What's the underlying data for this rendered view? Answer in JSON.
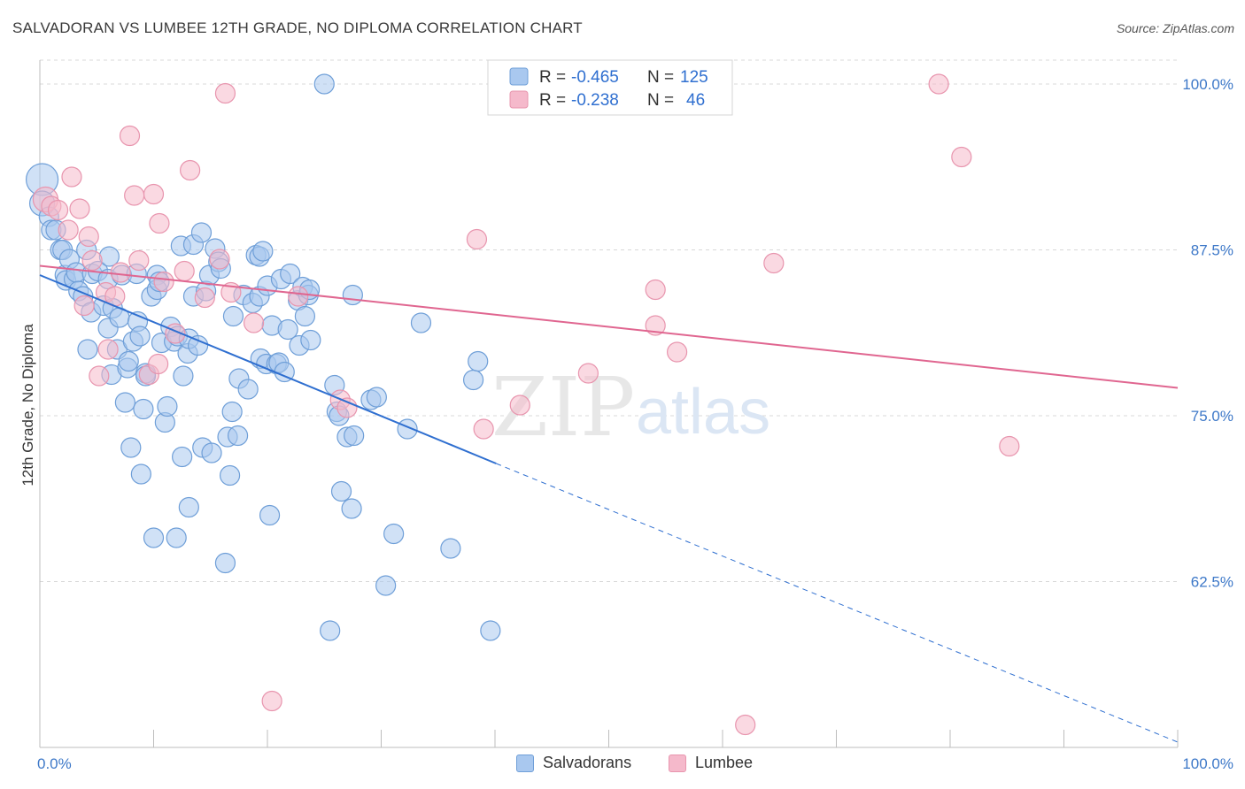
{
  "header": {
    "title": "SALVADORAN VS LUMBEE 12TH GRADE, NO DIPLOMA CORRELATION CHART",
    "source": "Source: ZipAtlas.com"
  },
  "watermark": {
    "zip": "ZIP",
    "atlas": "atlas"
  },
  "colors": {
    "blue_fill": "#a9c8ef",
    "blue_stroke": "#6f9fd8",
    "blue_line": "#2f6fd0",
    "pink_fill": "#f5b9cb",
    "pink_stroke": "#e895ae",
    "pink_line": "#e06690",
    "tick_label": "#3d78c8",
    "grid": "#d8d8d8"
  },
  "legend": {
    "rows": [
      {
        "r_label": "R = ",
        "r_value": "-0.465",
        "n_label": "N = ",
        "n_value": "125"
      },
      {
        "r_label": "R = ",
        "r_value": "-0.238",
        "n_label": "N = ",
        "n_value": "46"
      }
    ]
  },
  "chart_data": {
    "type": "scatter",
    "title": "SALVADORAN VS LUMBEE 12TH GRADE, NO DIPLOMA CORRELATION CHART",
    "xlabel": "",
    "ylabel": "12th Grade, No Diploma",
    "xlim": [
      0,
      100
    ],
    "ylim": [
      50,
      101.8
    ],
    "x_tick_labels": [
      "0.0%",
      "100.0%"
    ],
    "y_ticks": [
      62.5,
      75.0,
      87.5,
      100.0
    ],
    "y_tick_labels": [
      "62.5%",
      "75.0%",
      "87.5%",
      "100.0%"
    ],
    "grid": true,
    "legend_position": "top-center",
    "series": [
      {
        "name": "Salvadorans",
        "color": "#6f9fd8",
        "trend": {
          "x": [
            0,
            40.1,
            100
          ],
          "y": [
            85.6,
            71.4,
            50.4
          ],
          "dashed_from_x": 40.1
        },
        "points": [
          [
            0.2,
            92.8,
            18
          ],
          [
            0.2,
            91.0,
            14
          ],
          [
            0.8,
            90.0,
            11
          ],
          [
            1.0,
            89.0,
            11
          ],
          [
            1.4,
            89.0,
            11
          ],
          [
            1.8,
            87.5,
            11
          ],
          [
            2.0,
            87.5,
            11
          ],
          [
            2.2,
            85.6,
            11
          ],
          [
            2.3,
            85.2,
            11
          ],
          [
            2.6,
            86.8,
            11
          ],
          [
            3.0,
            85.3,
            11
          ],
          [
            3.2,
            85.8,
            11
          ],
          [
            3.4,
            84.4,
            11
          ],
          [
            3.8,
            84.0,
            11
          ],
          [
            4.1,
            87.5,
            11
          ],
          [
            4.2,
            80.0,
            11
          ],
          [
            4.5,
            82.8,
            11
          ],
          [
            4.6,
            85.7,
            11
          ],
          [
            5.1,
            85.9,
            11
          ],
          [
            5.6,
            83.3,
            11
          ],
          [
            6.0,
            85.3,
            11
          ],
          [
            6.0,
            81.6,
            11
          ],
          [
            6.1,
            87.0,
            11
          ],
          [
            6.3,
            78.1,
            11
          ],
          [
            6.4,
            83.1,
            11
          ],
          [
            6.8,
            80.0,
            11
          ],
          [
            7.2,
            85.6,
            11
          ],
          [
            7.0,
            82.4,
            11
          ],
          [
            7.5,
            76.0,
            11
          ],
          [
            7.7,
            78.6,
            11
          ],
          [
            7.8,
            79.1,
            11
          ],
          [
            8.0,
            72.6,
            11
          ],
          [
            8.2,
            80.6,
            11
          ],
          [
            8.5,
            85.7,
            11
          ],
          [
            8.6,
            82.1,
            11
          ],
          [
            8.8,
            81.0,
            11
          ],
          [
            8.9,
            70.6,
            11
          ],
          [
            9.1,
            75.5,
            11
          ],
          [
            9.3,
            78.2,
            11
          ],
          [
            9.3,
            78.0,
            11
          ],
          [
            9.8,
            84.0,
            11
          ],
          [
            10.0,
            65.8,
            11
          ],
          [
            10.3,
            85.6,
            11
          ],
          [
            10.3,
            84.5,
            11
          ],
          [
            10.5,
            85.1,
            11
          ],
          [
            10.7,
            80.5,
            11
          ],
          [
            11.0,
            74.5,
            11
          ],
          [
            11.2,
            75.7,
            11
          ],
          [
            11.5,
            81.7,
            11
          ],
          [
            11.8,
            80.6,
            11
          ],
          [
            12.0,
            65.8,
            11
          ],
          [
            12.1,
            81.0,
            11
          ],
          [
            12.4,
            87.8,
            11
          ],
          [
            12.5,
            71.9,
            11
          ],
          [
            12.6,
            78.0,
            11
          ],
          [
            13.0,
            79.7,
            11
          ],
          [
            13.1,
            80.8,
            11
          ],
          [
            13.1,
            68.1,
            11
          ],
          [
            13.5,
            84.0,
            11
          ],
          [
            13.5,
            87.9,
            11
          ],
          [
            13.9,
            80.3,
            11
          ],
          [
            14.2,
            88.8,
            11
          ],
          [
            14.3,
            72.6,
            11
          ],
          [
            14.6,
            84.4,
            11
          ],
          [
            14.9,
            85.6,
            11
          ],
          [
            15.1,
            72.2,
            11
          ],
          [
            15.4,
            87.6,
            11
          ],
          [
            15.7,
            86.6,
            11
          ],
          [
            15.9,
            86.1,
            11
          ],
          [
            16.3,
            63.9,
            11
          ],
          [
            16.5,
            73.4,
            11
          ],
          [
            16.7,
            70.5,
            11
          ],
          [
            16.9,
            75.3,
            11
          ],
          [
            17.0,
            82.5,
            11
          ],
          [
            17.4,
            73.5,
            11
          ],
          [
            17.5,
            77.8,
            11
          ],
          [
            17.9,
            84.1,
            11
          ],
          [
            18.3,
            77.0,
            11
          ],
          [
            18.7,
            83.5,
            11
          ],
          [
            19.0,
            87.1,
            11
          ],
          [
            19.3,
            87.0,
            11
          ],
          [
            19.3,
            84.0,
            11
          ],
          [
            19.4,
            79.3,
            11
          ],
          [
            19.6,
            87.4,
            11
          ],
          [
            19.9,
            78.9,
            11
          ],
          [
            20.0,
            84.8,
            11
          ],
          [
            20.2,
            67.5,
            11
          ],
          [
            20.4,
            81.8,
            11
          ],
          [
            20.8,
            78.9,
            11
          ],
          [
            21.0,
            79.0,
            11
          ],
          [
            21.2,
            85.3,
            11
          ],
          [
            21.5,
            78.3,
            11
          ],
          [
            21.8,
            81.5,
            11
          ],
          [
            22.0,
            85.7,
            11
          ],
          [
            22.7,
            83.7,
            11
          ],
          [
            22.8,
            80.3,
            11
          ],
          [
            23.1,
            84.7,
            11
          ],
          [
            23.3,
            82.5,
            11
          ],
          [
            23.6,
            84.1,
            11
          ],
          [
            23.7,
            84.5,
            11
          ],
          [
            23.8,
            80.7,
            11
          ],
          [
            25.0,
            100.0,
            11
          ],
          [
            25.5,
            58.8,
            11
          ],
          [
            25.9,
            77.3,
            11
          ],
          [
            26.1,
            75.3,
            11
          ],
          [
            26.3,
            75.0,
            11
          ],
          [
            26.5,
            69.3,
            11
          ],
          [
            27.0,
            73.4,
            11
          ],
          [
            27.4,
            68.0,
            11
          ],
          [
            27.6,
            73.5,
            11
          ],
          [
            27.5,
            84.1,
            11
          ],
          [
            29.1,
            76.2,
            11
          ],
          [
            29.6,
            76.4,
            11
          ],
          [
            30.4,
            62.2,
            11
          ],
          [
            31.1,
            66.1,
            11
          ],
          [
            32.3,
            74.0,
            11
          ],
          [
            33.5,
            82.0,
            11
          ],
          [
            36.1,
            65.0,
            11
          ],
          [
            38.1,
            77.7,
            11
          ],
          [
            38.5,
            79.1,
            11
          ],
          [
            39.6,
            58.8,
            11
          ]
        ]
      },
      {
        "name": "Lumbee",
        "color": "#e895ae",
        "trend": {
          "x": [
            0,
            100
          ],
          "y": [
            86.3,
            77.1
          ]
        },
        "points": [
          [
            0.5,
            91.3,
            14
          ],
          [
            1.0,
            90.8,
            11
          ],
          [
            1.6,
            90.5,
            11
          ],
          [
            2.5,
            89.0,
            11
          ],
          [
            2.8,
            93.0,
            11
          ],
          [
            3.5,
            90.6,
            11
          ],
          [
            3.9,
            83.3,
            11
          ],
          [
            4.3,
            88.5,
            11
          ],
          [
            4.6,
            86.7,
            11
          ],
          [
            5.2,
            78.0,
            11
          ],
          [
            5.8,
            84.3,
            11
          ],
          [
            6.0,
            80.0,
            11
          ],
          [
            6.6,
            84.0,
            11
          ],
          [
            7.1,
            85.8,
            11
          ],
          [
            7.9,
            96.1,
            11
          ],
          [
            8.3,
            91.6,
            11
          ],
          [
            8.7,
            86.7,
            11
          ],
          [
            9.6,
            78.1,
            11
          ],
          [
            10.0,
            91.7,
            11
          ],
          [
            10.4,
            78.9,
            11
          ],
          [
            10.5,
            89.5,
            11
          ],
          [
            10.9,
            85.1,
            11
          ],
          [
            11.9,
            81.2,
            11
          ],
          [
            12.7,
            85.9,
            11
          ],
          [
            13.2,
            93.5,
            11
          ],
          [
            14.5,
            83.9,
            11
          ],
          [
            15.8,
            86.8,
            11
          ],
          [
            16.3,
            99.3,
            11
          ],
          [
            16.8,
            84.3,
            11
          ],
          [
            18.8,
            82.0,
            11
          ],
          [
            20.4,
            53.5,
            11
          ],
          [
            22.7,
            84.0,
            11
          ],
          [
            26.4,
            76.2,
            11
          ],
          [
            27.0,
            75.6,
            11
          ],
          [
            38.4,
            88.3,
            11
          ],
          [
            39.0,
            74.0,
            11
          ],
          [
            42.2,
            75.8,
            11
          ],
          [
            48.2,
            78.2,
            11
          ],
          [
            54.1,
            84.5,
            11
          ],
          [
            54.1,
            81.8,
            11
          ],
          [
            56.0,
            79.8,
            11
          ],
          [
            62.0,
            51.7,
            11
          ],
          [
            64.5,
            86.5,
            11
          ],
          [
            79.0,
            100.0,
            11
          ],
          [
            81.0,
            94.5,
            11
          ],
          [
            85.2,
            72.7,
            11
          ]
        ]
      }
    ]
  }
}
